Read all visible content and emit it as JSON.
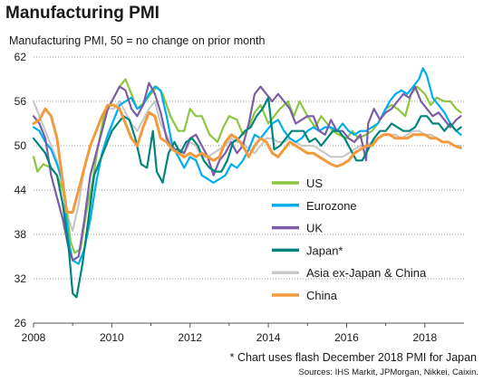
{
  "title": "Manufacturing PMI",
  "subtitle": "Manufacturing PMI, 50 = no change on prior month",
  "footnote": "* Chart uses flash December 2018 PMI for Japan",
  "sources": "Sources: IHS Markit, JPMorgan, Nikkei, Caixin.",
  "chart_data": {
    "type": "line",
    "title": "Manufacturing PMI",
    "subtitle": "Manufacturing PMI, 50 = no change on prior month",
    "xlim": [
      2008,
      2019
    ],
    "ylim": [
      26,
      62
    ],
    "x_ticks": [
      2008,
      2010,
      2012,
      2014,
      2016,
      2018
    ],
    "y_ticks": [
      26,
      32,
      38,
      44,
      50,
      56,
      62
    ],
    "grid": "horizontal dotted",
    "legend_placement": "lower-middle",
    "series": [
      {
        "name": "US",
        "color": "#8cc63f",
        "x": [
          2008.0,
          2008.1,
          2008.25,
          2008.45,
          2008.6,
          2008.75,
          2008.85,
          2008.95,
          2009.05,
          2009.2,
          2009.35,
          2009.5,
          2009.65,
          2009.8,
          2010.0,
          2010.2,
          2010.35,
          2010.5,
          2010.65,
          2010.85,
          2011.0,
          2011.15,
          2011.3,
          2011.5,
          2011.7,
          2011.85,
          2012.0,
          2012.15,
          2012.3,
          2012.5,
          2012.7,
          2012.85,
          2013.0,
          2013.2,
          2013.35,
          2013.5,
          2013.65,
          2013.8,
          2014.0,
          2014.15,
          2014.3,
          2014.5,
          2014.65,
          2014.8,
          2015.0,
          2015.2,
          2015.35,
          2015.5,
          2015.65,
          2015.8,
          2016.0,
          2016.15,
          2016.3,
          2016.5,
          2016.65,
          2016.8,
          2017.0,
          2017.15,
          2017.3,
          2017.5,
          2017.65,
          2017.8,
          2018.0,
          2018.15,
          2018.3,
          2018.5,
          2018.65,
          2018.8,
          2018.92
        ],
        "y": [
          48.5,
          46.5,
          47.5,
          47,
          46,
          44,
          41,
          37,
          35.5,
          36,
          41,
          45,
          50,
          54,
          56,
          58,
          59,
          57,
          55,
          56,
          57,
          58,
          57,
          54,
          52,
          52,
          55,
          54,
          54,
          51.5,
          50.5,
          52.5,
          54,
          53.5,
          51.5,
          52.5,
          54.5,
          55.5,
          53,
          54,
          55,
          56,
          54,
          56,
          54,
          52.5,
          54,
          53,
          52,
          51.5,
          51,
          52,
          51,
          51.5,
          52,
          53,
          55,
          55.5,
          55,
          54,
          57,
          58,
          57,
          55.5,
          56.5,
          56,
          56,
          55,
          54.5
        ]
      },
      {
        "name": "Eurozone",
        "color": "#00aeef",
        "x": [
          2008.0,
          2008.15,
          2008.3,
          2008.45,
          2008.6,
          2008.75,
          2008.9,
          2009.0,
          2009.15,
          2009.3,
          2009.45,
          2009.6,
          2009.75,
          2009.9,
          2010.05,
          2010.2,
          2010.35,
          2010.5,
          2010.65,
          2010.8,
          2010.95,
          2011.1,
          2011.25,
          2011.4,
          2011.55,
          2011.7,
          2011.85,
          2012.0,
          2012.15,
          2012.3,
          2012.45,
          2012.6,
          2012.75,
          2012.9,
          2013.05,
          2013.2,
          2013.35,
          2013.5,
          2013.65,
          2013.8,
          2013.95,
          2014.1,
          2014.25,
          2014.4,
          2014.55,
          2014.7,
          2014.85,
          2015.0,
          2015.15,
          2015.3,
          2015.45,
          2015.6,
          2015.75,
          2015.9,
          2016.05,
          2016.2,
          2016.35,
          2016.5,
          2016.65,
          2016.8,
          2016.95,
          2017.1,
          2017.25,
          2017.4,
          2017.55,
          2017.7,
          2017.85,
          2017.95,
          2018.05,
          2018.2,
          2018.35,
          2018.5,
          2018.65,
          2018.8,
          2018.92
        ],
        "y": [
          52.5,
          52,
          50.5,
          49.5,
          47.5,
          45,
          37,
          34.5,
          34,
          36,
          40,
          45,
          49,
          51.5,
          53.5,
          55.5,
          56,
          56.5,
          55,
          55.5,
          57,
          58,
          57.5,
          54,
          50,
          48.5,
          47,
          48.5,
          48,
          46,
          45.5,
          45,
          45.5,
          46,
          47.5,
          47,
          48,
          49.5,
          51.5,
          51,
          52,
          53,
          53.5,
          52,
          51,
          50.5,
          51,
          52,
          52.5,
          52,
          52.5,
          52.5,
          52,
          53,
          52,
          51.5,
          52,
          52,
          52.5,
          53,
          54.5,
          56,
          57,
          57.5,
          57,
          58,
          59,
          60.5,
          59.5,
          56.5,
          55.5,
          54.5,
          53,
          52,
          51.5
        ]
      },
      {
        "name": "UK",
        "color": "#7b5ea7",
        "x": [
          2008.0,
          2008.15,
          2008.3,
          2008.45,
          2008.6,
          2008.75,
          2008.9,
          2009.0,
          2009.15,
          2009.3,
          2009.45,
          2009.6,
          2009.75,
          2009.9,
          2010.05,
          2010.2,
          2010.35,
          2010.5,
          2010.65,
          2010.8,
          2010.95,
          2011.1,
          2011.25,
          2011.4,
          2011.55,
          2011.7,
          2011.85,
          2012.0,
          2012.15,
          2012.3,
          2012.45,
          2012.6,
          2012.75,
          2012.9,
          2013.05,
          2013.2,
          2013.35,
          2013.5,
          2013.65,
          2013.8,
          2013.95,
          2014.1,
          2014.25,
          2014.4,
          2014.55,
          2014.7,
          2014.85,
          2015.0,
          2015.15,
          2015.3,
          2015.45,
          2015.6,
          2015.75,
          2015.9,
          2016.05,
          2016.2,
          2016.35,
          2016.5,
          2016.55,
          2016.7,
          2016.85,
          2017.0,
          2017.15,
          2017.3,
          2017.45,
          2017.6,
          2017.75,
          2017.9,
          2018.05,
          2018.2,
          2018.35,
          2018.5,
          2018.65,
          2018.8,
          2018.92
        ],
        "y": [
          54,
          53,
          51,
          46,
          43,
          40,
          36,
          34.5,
          35,
          40,
          46,
          49,
          52,
          55,
          56.5,
          58,
          57.5,
          55,
          54,
          55.5,
          58.5,
          57,
          54.5,
          51,
          49.5,
          49.5,
          49,
          51,
          51.5,
          50,
          48.5,
          46,
          48,
          49,
          50.5,
          49,
          50,
          53,
          57,
          58,
          57,
          56,
          57,
          56,
          55,
          53,
          53.5,
          54,
          54,
          52,
          51.5,
          53.5,
          52,
          52,
          51,
          50.5,
          51.5,
          48,
          53,
          55,
          53.5,
          54.5,
          55,
          56,
          57,
          56.5,
          58,
          56,
          55,
          54,
          54.5,
          53.5,
          52.5,
          53.5,
          54
        ]
      },
      {
        "name": "Japan*",
        "color": "#00857c",
        "x": [
          2008.0,
          2008.15,
          2008.3,
          2008.45,
          2008.6,
          2008.75,
          2008.9,
          2009.0,
          2009.1,
          2009.25,
          2009.4,
          2009.55,
          2009.7,
          2009.85,
          2010.0,
          2010.15,
          2010.3,
          2010.45,
          2010.6,
          2010.75,
          2010.9,
          2011.05,
          2011.15,
          2011.3,
          2011.45,
          2011.6,
          2011.75,
          2011.9,
          2012.05,
          2012.2,
          2012.35,
          2012.5,
          2012.65,
          2012.8,
          2012.95,
          2013.1,
          2013.25,
          2013.4,
          2013.55,
          2013.7,
          2013.85,
          2014.0,
          2014.15,
          2014.3,
          2014.45,
          2014.6,
          2014.75,
          2014.9,
          2015.05,
          2015.2,
          2015.35,
          2015.5,
          2015.65,
          2015.8,
          2015.95,
          2016.1,
          2016.25,
          2016.4,
          2016.55,
          2016.7,
          2016.85,
          2017.0,
          2017.15,
          2017.3,
          2017.45,
          2017.6,
          2017.75,
          2017.9,
          2018.05,
          2018.2,
          2018.35,
          2018.5,
          2018.65,
          2018.8,
          2018.92
        ],
        "y": [
          51,
          50,
          49,
          47,
          46,
          42,
          36,
          30,
          29.5,
          34,
          40,
          46,
          48,
          50,
          52,
          53,
          54,
          53.5,
          51,
          47.5,
          47,
          52,
          46.5,
          45,
          49,
          50.5,
          49,
          50.5,
          51,
          50,
          48,
          47,
          46.5,
          46.5,
          48,
          50.5,
          51,
          52,
          52.5,
          54,
          55,
          56.5,
          49.5,
          50,
          51,
          52,
          52,
          52,
          50.5,
          51,
          50,
          51,
          52,
          52,
          51,
          49.5,
          48,
          48,
          49.5,
          51,
          52,
          52,
          53,
          52.5,
          52,
          52,
          52.5,
          54,
          54,
          53,
          53,
          52,
          53,
          52,
          52.5
        ]
      },
      {
        "name": "Asia ex-Japan & China",
        "color": "#c8c8c8",
        "x": [
          2008.0,
          2008.15,
          2008.3,
          2008.45,
          2008.6,
          2008.75,
          2008.9,
          2009.0,
          2009.15,
          2009.3,
          2009.45,
          2009.6,
          2009.75,
          2009.9,
          2010.05,
          2010.2,
          2010.35,
          2010.5,
          2010.65,
          2010.8,
          2010.95,
          2011.1,
          2011.25,
          2011.4,
          2011.55,
          2011.7,
          2011.85,
          2012.0,
          2012.15,
          2012.3,
          2012.45,
          2012.6,
          2012.75,
          2012.9,
          2013.05,
          2013.2,
          2013.35,
          2013.5,
          2013.65,
          2013.8,
          2013.95,
          2014.1,
          2014.25,
          2014.4,
          2014.55,
          2014.7,
          2014.85,
          2015.0,
          2015.15,
          2015.3,
          2015.45,
          2015.6,
          2015.75,
          2015.9,
          2016.05,
          2016.2,
          2016.35,
          2016.5,
          2016.65,
          2016.8,
          2016.95,
          2017.1,
          2017.25,
          2017.4,
          2017.55,
          2017.7,
          2017.85,
          2018.0,
          2018.15,
          2018.3,
          2018.45,
          2018.6,
          2018.75,
          2018.92
        ],
        "y": [
          56,
          54,
          52,
          50,
          48,
          44,
          40,
          38.5,
          42,
          47,
          50,
          52,
          54,
          55,
          55,
          56,
          54.5,
          53,
          52,
          53.5,
          55,
          56,
          53,
          51.5,
          50,
          49,
          49,
          50.5,
          50,
          48.5,
          48.5,
          49,
          49.5,
          50,
          51,
          50.5,
          50.5,
          49.5,
          49,
          50,
          51,
          51,
          50.5,
          50.5,
          51,
          50.5,
          50,
          50,
          50,
          49.5,
          49,
          48.5,
          48.5,
          48.5,
          49,
          49.5,
          50,
          50,
          50.5,
          51,
          51.5,
          51.5,
          51.5,
          51,
          51.5,
          52,
          52,
          51.5,
          51.5,
          51,
          50.5,
          50.5,
          50,
          50
        ]
      },
      {
        "name": "China",
        "color": "#f39a3c",
        "x": [
          2008.0,
          2008.15,
          2008.3,
          2008.45,
          2008.6,
          2008.75,
          2008.85,
          2009.0,
          2009.15,
          2009.3,
          2009.45,
          2009.6,
          2009.75,
          2009.9,
          2010.05,
          2010.2,
          2010.35,
          2010.5,
          2010.65,
          2010.8,
          2010.95,
          2011.1,
          2011.25,
          2011.4,
          2011.55,
          2011.7,
          2011.85,
          2012.0,
          2012.15,
          2012.3,
          2012.45,
          2012.6,
          2012.75,
          2012.9,
          2013.05,
          2013.2,
          2013.35,
          2013.5,
          2013.65,
          2013.8,
          2013.95,
          2014.1,
          2014.25,
          2014.4,
          2014.55,
          2014.7,
          2014.85,
          2015.0,
          2015.15,
          2015.3,
          2015.45,
          2015.6,
          2015.75,
          2015.9,
          2016.05,
          2016.2,
          2016.35,
          2016.5,
          2016.65,
          2016.8,
          2016.95,
          2017.1,
          2017.25,
          2017.4,
          2017.55,
          2017.7,
          2017.85,
          2018.0,
          2018.15,
          2018.3,
          2018.45,
          2018.6,
          2018.75,
          2018.92
        ],
        "y": [
          53,
          53.5,
          55,
          54,
          51,
          45,
          41,
          41,
          44,
          47,
          50,
          52,
          54,
          55.5,
          55.5,
          55,
          53,
          51,
          50,
          52.5,
          54.5,
          54,
          51,
          50.5,
          49.5,
          49,
          48.5,
          49,
          48.5,
          49,
          48.5,
          48,
          48.5,
          50.5,
          51.5,
          51,
          50,
          48.5,
          50,
          51,
          50.5,
          49,
          48.5,
          49.5,
          50.5,
          50,
          49.5,
          49,
          49,
          48.5,
          48,
          47.5,
          47.2,
          47.5,
          48,
          49,
          49.5,
          50,
          50,
          51,
          51.5,
          51.5,
          51,
          51,
          51,
          51.5,
          51.5,
          51.5,
          51,
          51,
          50.5,
          50.5,
          50,
          49.7
        ]
      }
    ]
  }
}
